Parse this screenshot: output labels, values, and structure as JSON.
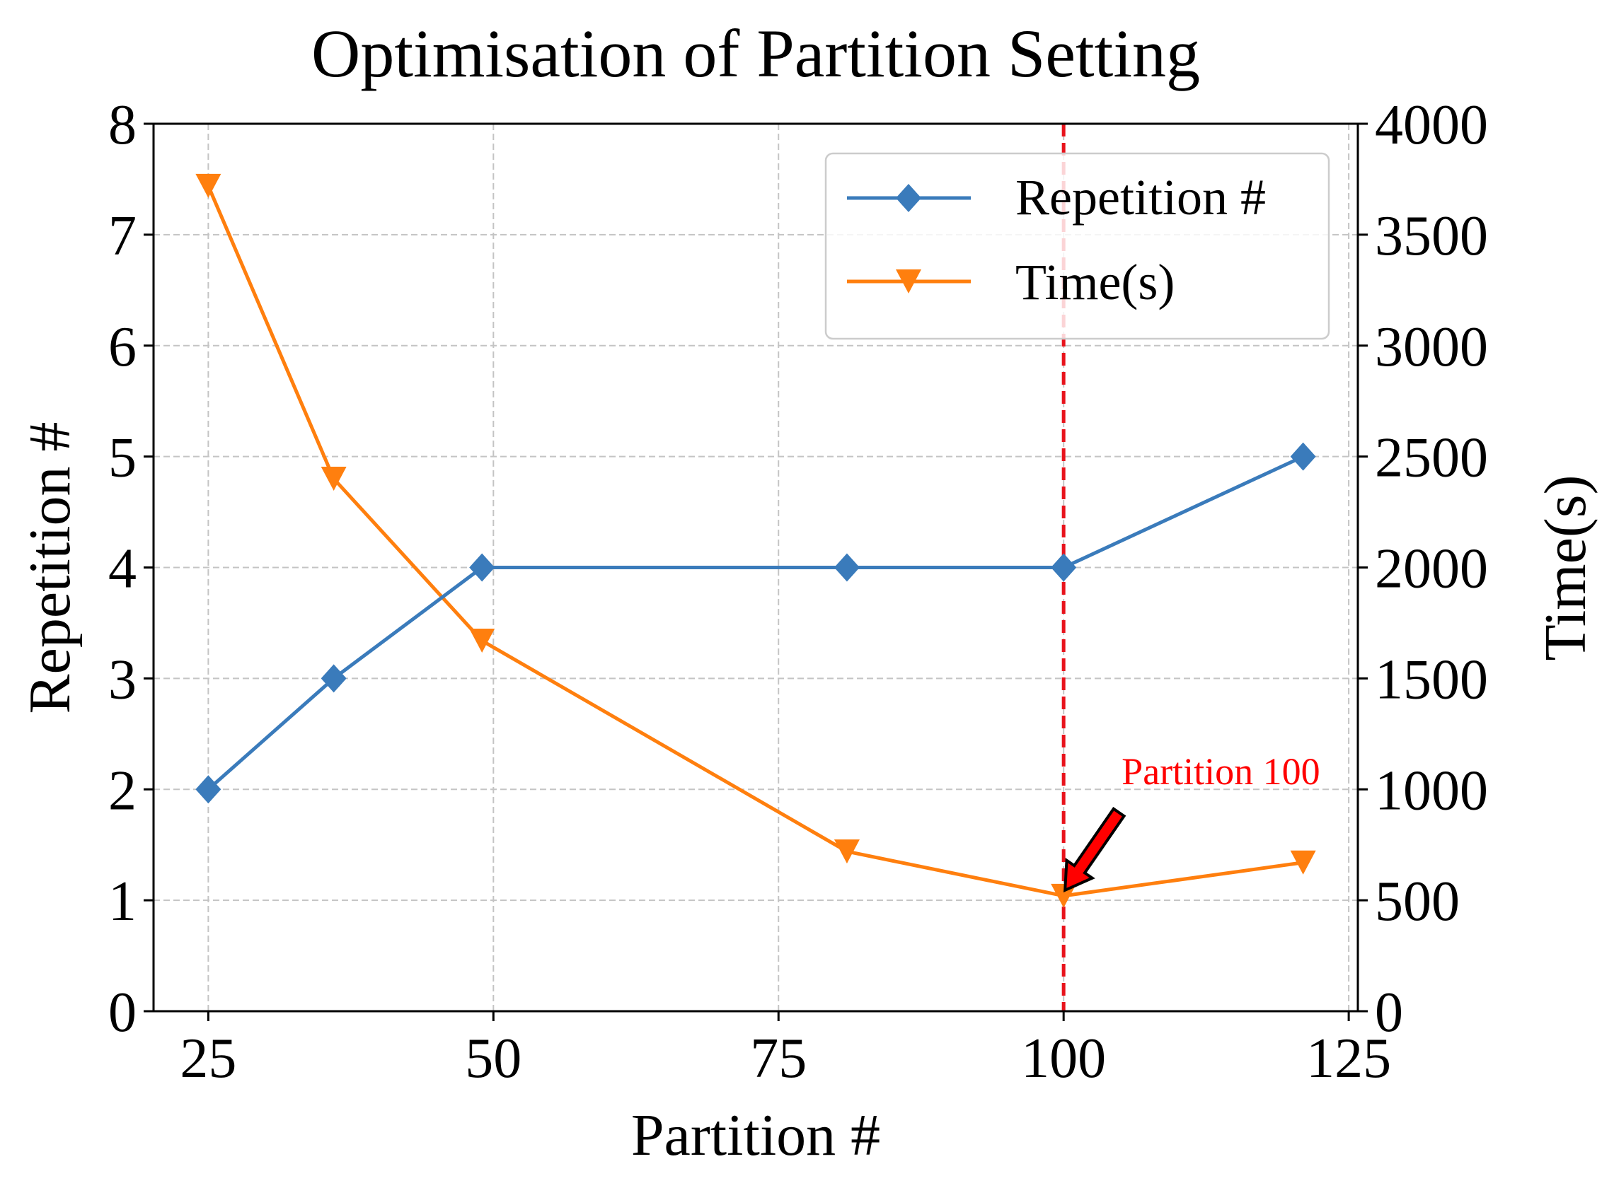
{
  "chart_data": {
    "type": "line",
    "title": "Optimisation of Partition Setting",
    "xlabel": "Partition #",
    "ylabel": "Repetition #",
    "y2label": "Time(s)",
    "x": [
      25,
      36,
      49,
      81,
      100,
      121
    ],
    "xlim": [
      20.2,
      125.8
    ],
    "ylim": [
      0,
      8
    ],
    "y2lim": [
      0,
      4000
    ],
    "xticks": [
      25,
      50,
      75,
      100,
      125
    ],
    "yticks": [
      0,
      1,
      2,
      3,
      4,
      5,
      6,
      7,
      8
    ],
    "y2ticks": [
      0,
      500,
      1000,
      1500,
      2000,
      2500,
      3000,
      3500,
      4000
    ],
    "grid": true,
    "legend_position": "top-right",
    "series": [
      {
        "name": "Repetition #",
        "axis": "left",
        "marker": "diamond",
        "color": "#3a7bbb",
        "values": [
          2,
          3,
          4,
          4,
          4,
          5
        ]
      },
      {
        "name": "Time(s)",
        "axis": "right",
        "marker": "triangle-down",
        "color": "#ff7f0e",
        "values": [
          3720,
          2400,
          1670,
          720,
          520,
          670
        ]
      }
    ],
    "vline": {
      "x": 100,
      "color": "#e8131c"
    },
    "annotation": {
      "text": "Partition 100",
      "x": 100,
      "y2": 520,
      "color": "#ff0000"
    }
  }
}
